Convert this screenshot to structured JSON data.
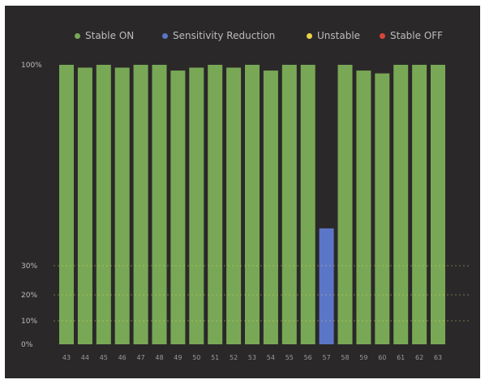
{
  "chart_data": {
    "type": "bar",
    "legend": [
      {
        "label": "Stable ON",
        "color": "#78a855"
      },
      {
        "label": "Sensitivity Reduction",
        "color": "#5b76c7"
      },
      {
        "label": "Unstable",
        "color": "#e8d44a"
      },
      {
        "label": "Stable OFF",
        "color": "#d9463a"
      }
    ],
    "categories": [
      "43",
      "44",
      "45",
      "46",
      "47",
      "48",
      "49",
      "50",
      "51",
      "52",
      "53",
      "54",
      "55",
      "56",
      "57",
      "58",
      "59",
      "60",
      "61",
      "62",
      "63"
    ],
    "values": [
      100,
      99,
      100,
      99,
      100,
      100,
      98,
      99,
      100,
      99,
      100,
      98,
      100,
      100,
      43,
      100,
      98,
      97,
      100,
      100,
      100
    ],
    "status": [
      "Stable ON",
      "Stable ON",
      "Stable ON",
      "Stable ON",
      "Stable ON",
      "Stable ON",
      "Stable ON",
      "Stable ON",
      "Stable ON",
      "Stable ON",
      "Stable ON",
      "Stable ON",
      "Stable ON",
      "Stable ON",
      "Sensitivity Reduction",
      "Stable ON",
      "Stable ON",
      "Stable ON",
      "Stable ON",
      "Stable ON",
      "Stable ON"
    ],
    "y_ticks": [
      {
        "value": 100,
        "label": "100%"
      },
      {
        "value": 30,
        "label": "30%"
      },
      {
        "value": 20,
        "label": "20%"
      },
      {
        "value": 10,
        "label": "10%"
      },
      {
        "value": 0,
        "label": "0%"
      }
    ],
    "ylim": [
      0,
      100
    ],
    "colors": {
      "background": "#2b2829",
      "guide": "#d8d27a"
    }
  }
}
